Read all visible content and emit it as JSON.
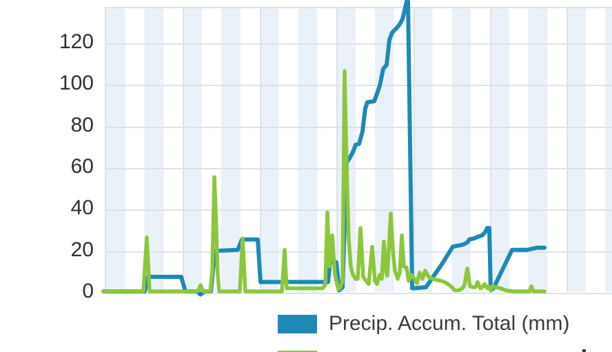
{
  "axes": {
    "y_ticks": [
      "0",
      "20",
      "40",
      "60",
      "80",
      "100",
      "120"
    ],
    "x_tick_labels": []
  },
  "legend": {
    "items": [
      {
        "label": "Precip. Accum. Total (mm)",
        "color": "#1e88b7"
      },
      {
        "label": "",
        "color": "#8cc63d"
      }
    ]
  },
  "colors": {
    "accum_line": "#1e88b7",
    "rate_line": "#8cc63d",
    "stripe": "#eaf1f8",
    "gridline": "#dee2e7",
    "tick_text": "#2f2f2f",
    "legend_text": "#3b3b3b"
  },
  "chart_data": {
    "type": "line",
    "title": "",
    "xlabel": "",
    "ylabel": "",
    "ylim": [
      0,
      137
    ],
    "y_gridline_step": 20,
    "x_axis_labels_visible": false,
    "grid": true,
    "legend_position": "bottom",
    "note": "x values are horizontal plot positions in pixels (no x tick labels are visible in the chart); y values are in mm as read from the y axis",
    "series": [
      {
        "name": "Precip. Accum. Total (mm)",
        "color": "#1e88b7",
        "points": [
          [
            150,
            0
          ],
          [
            210,
            0
          ],
          [
            215,
            7
          ],
          [
            263,
            7
          ],
          [
            269,
            0
          ],
          [
            286,
            0
          ],
          [
            291,
            -1.5
          ],
          [
            297,
            0
          ],
          [
            306,
            0
          ],
          [
            312,
            19.5
          ],
          [
            345,
            20
          ],
          [
            351,
            25
          ],
          [
            374,
            25
          ],
          [
            378,
            4.5
          ],
          [
            476,
            4.5
          ],
          [
            479,
            14
          ],
          [
            488,
            14
          ],
          [
            492,
            0.5
          ],
          [
            497,
            2
          ],
          [
            503,
            62
          ],
          [
            507,
            64
          ],
          [
            512,
            67
          ],
          [
            516,
            70.5
          ],
          [
            521,
            71
          ],
          [
            526,
            77
          ],
          [
            530,
            88
          ],
          [
            533,
            91
          ],
          [
            543,
            91.5
          ],
          [
            548,
            96
          ],
          [
            551,
            99
          ],
          [
            556,
            107
          ],
          [
            561,
            109
          ],
          [
            565,
            121
          ],
          [
            569,
            124.5
          ],
          [
            575,
            126.5
          ],
          [
            580,
            128.5
          ],
          [
            584,
            131
          ],
          [
            587,
            135
          ],
          [
            590,
            139.5
          ],
          [
            592,
            139.5
          ],
          [
            598,
            1.5
          ],
          [
            618,
            2
          ],
          [
            640,
            12.5
          ],
          [
            657,
            21.5
          ],
          [
            665,
            22
          ],
          [
            672,
            22.5
          ],
          [
            678,
            23.5
          ],
          [
            681,
            25
          ],
          [
            688,
            25.5
          ],
          [
            695,
            26.5
          ],
          [
            700,
            27
          ],
          [
            704,
            28.5
          ],
          [
            707,
            30.5
          ],
          [
            710,
            30.5
          ],
          [
            712,
            0.5
          ],
          [
            716,
            1.5
          ],
          [
            743,
            20
          ],
          [
            765,
            20
          ],
          [
            772,
            20.5
          ],
          [
            780,
            21
          ],
          [
            790,
            21
          ]
        ]
      },
      {
        "name": "",
        "color": "#8cc63d",
        "points": [
          [
            150,
            0
          ],
          [
            208,
            0
          ],
          [
            213,
            26
          ],
          [
            217,
            0
          ],
          [
            286,
            0
          ],
          [
            288,
            0.5
          ],
          [
            291,
            3
          ],
          [
            295,
            0
          ],
          [
            305,
            0
          ],
          [
            308,
            10
          ],
          [
            311,
            55
          ],
          [
            313,
            38
          ],
          [
            316,
            8
          ],
          [
            318,
            0
          ],
          [
            348,
            0
          ],
          [
            352,
            25.5
          ],
          [
            356,
            0
          ],
          [
            409,
            0
          ],
          [
            413,
            20
          ],
          [
            416,
            1.5
          ],
          [
            440,
            1.5
          ],
          [
            468,
            1.5
          ],
          [
            472,
            3
          ],
          [
            475,
            38
          ],
          [
            478,
            12
          ],
          [
            482,
            27
          ],
          [
            486,
            8
          ],
          [
            491,
            1
          ],
          [
            494,
            2
          ],
          [
            497,
            5
          ],
          [
            500,
            106
          ],
          [
            503,
            60
          ],
          [
            506,
            25
          ],
          [
            509,
            12
          ],
          [
            512,
            8
          ],
          [
            516,
            6
          ],
          [
            519,
            6
          ],
          [
            523,
            30.5
          ],
          [
            527,
            7
          ],
          [
            530,
            5.5
          ],
          [
            535,
            3.5
          ],
          [
            540,
            21.5
          ],
          [
            544,
            5
          ],
          [
            547,
            3.5
          ],
          [
            551,
            8
          ],
          [
            554,
            6
          ],
          [
            557,
            24
          ],
          [
            560,
            10
          ],
          [
            562,
            7.5
          ],
          [
            567,
            37.5
          ],
          [
            570,
            20
          ],
          [
            573,
            10
          ],
          [
            577,
            6
          ],
          [
            580,
            9
          ],
          [
            583,
            27
          ],
          [
            586,
            12
          ],
          [
            590,
            11.5
          ],
          [
            593,
            5
          ],
          [
            597,
            8
          ],
          [
            601,
            6
          ],
          [
            605,
            4
          ],
          [
            609,
            9
          ],
          [
            613,
            6
          ],
          [
            617,
            10
          ],
          [
            622,
            7
          ],
          [
            628,
            6
          ],
          [
            634,
            5.5
          ],
          [
            641,
            5
          ],
          [
            648,
            4
          ],
          [
            654,
            2.5
          ],
          [
            660,
            0.5
          ],
          [
            666,
            0.5
          ],
          [
            671,
            1.5
          ],
          [
            674,
            3
          ],
          [
            678,
            11
          ],
          [
            682,
            2.5
          ],
          [
            686,
            2
          ],
          [
            690,
            2
          ],
          [
            693,
            4.5
          ],
          [
            697,
            1.5
          ],
          [
            700,
            2
          ],
          [
            703,
            3.5
          ],
          [
            707,
            1.5
          ],
          [
            709,
            2.5
          ],
          [
            712,
            0.5
          ],
          [
            715,
            2.5
          ],
          [
            720,
            2
          ],
          [
            726,
            1.5
          ],
          [
            734,
            0.5
          ],
          [
            745,
            0
          ],
          [
            768,
            0
          ],
          [
            771,
            2.5
          ],
          [
            774,
            0
          ],
          [
            790,
            0
          ]
        ]
      }
    ]
  }
}
